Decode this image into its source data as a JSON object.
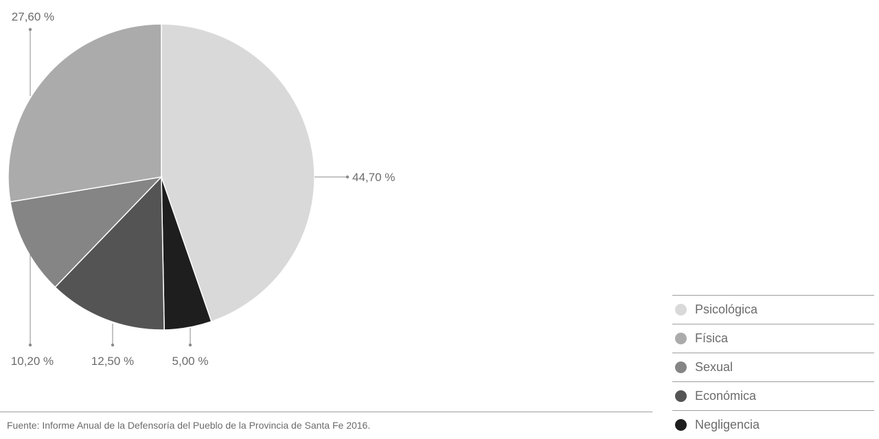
{
  "chart_data": {
    "type": "pie",
    "title": "",
    "slices": [
      {
        "name": "Psicológica",
        "value": 44.7,
        "label": "44,70 %",
        "color": "#d9d9d9"
      },
      {
        "name": "Negligencia",
        "value": 5.0,
        "label": "5,00 %",
        "color": "#1e1e1e"
      },
      {
        "name": "Económica",
        "value": 12.5,
        "label": "12,50 %",
        "color": "#545454"
      },
      {
        "name": "Sexual",
        "value": 10.2,
        "label": "10,20 %",
        "color": "#858585"
      },
      {
        "name": "Física",
        "value": 27.6,
        "label": "27,60 %",
        "color": "#ababab"
      }
    ],
    "legend": {
      "placement": "bottom-right",
      "entries": [
        {
          "name": "Psicológica",
          "color": "#d9d9d9"
        },
        {
          "name": "Física",
          "color": "#ababab"
        },
        {
          "name": "Sexual",
          "color": "#858585"
        },
        {
          "name": "Económica",
          "color": "#545454"
        },
        {
          "name": "Negligencia",
          "color": "#1e1e1e"
        }
      ]
    }
  },
  "source": "Fuente: Informe Anual de la Defensoría del Pueblo de la Provincia de Santa Fe 2016."
}
